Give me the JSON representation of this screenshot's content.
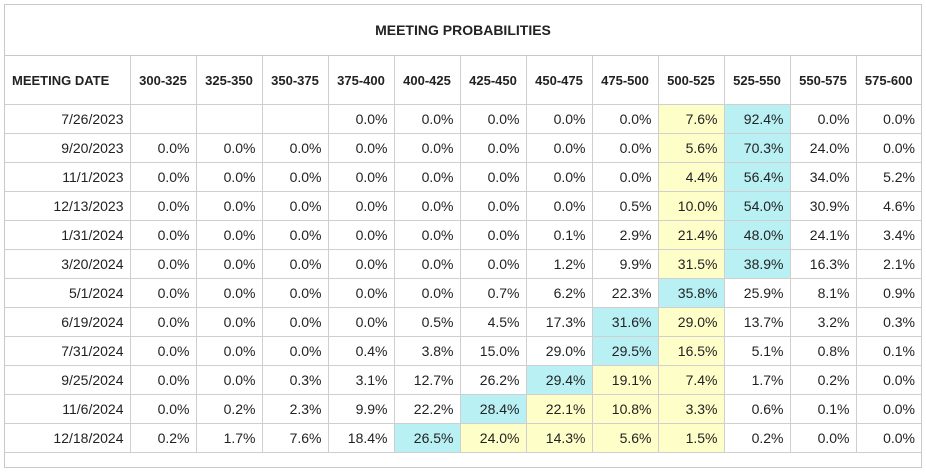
{
  "title": "MEETING PROBABILITIES",
  "columns": [
    "MEETING DATE",
    "300-325",
    "325-350",
    "350-375",
    "375-400",
    "400-425",
    "425-450",
    "450-475",
    "475-500",
    "500-525",
    "525-550",
    "550-575",
    "575-600"
  ],
  "colors": {
    "highlight_yellow": "#fefec8",
    "highlight_cyan": "#b8f0f4"
  },
  "rows": [
    {
      "date": "7/26/2023",
      "values": [
        "",
        "",
        "",
        "0.0%",
        "0.0%",
        "0.0%",
        "0.0%",
        "0.0%",
        "7.6%",
        "92.4%",
        "0.0%",
        "0.0%"
      ],
      "yellow": 8,
      "cyan": 9
    },
    {
      "date": "9/20/2023",
      "values": [
        "0.0%",
        "0.0%",
        "0.0%",
        "0.0%",
        "0.0%",
        "0.0%",
        "0.0%",
        "0.0%",
        "5.6%",
        "70.3%",
        "24.0%",
        "0.0%"
      ],
      "yellow": 8,
      "cyan": 9
    },
    {
      "date": "11/1/2023",
      "values": [
        "0.0%",
        "0.0%",
        "0.0%",
        "0.0%",
        "0.0%",
        "0.0%",
        "0.0%",
        "0.0%",
        "4.4%",
        "56.4%",
        "34.0%",
        "5.2%"
      ],
      "yellow": 8,
      "cyan": 9
    },
    {
      "date": "12/13/2023",
      "values": [
        "0.0%",
        "0.0%",
        "0.0%",
        "0.0%",
        "0.0%",
        "0.0%",
        "0.0%",
        "0.5%",
        "10.0%",
        "54.0%",
        "30.9%",
        "4.6%"
      ],
      "yellow": 8,
      "cyan": 9
    },
    {
      "date": "1/31/2024",
      "values": [
        "0.0%",
        "0.0%",
        "0.0%",
        "0.0%",
        "0.0%",
        "0.0%",
        "0.1%",
        "2.9%",
        "21.4%",
        "48.0%",
        "24.1%",
        "3.4%"
      ],
      "yellow": 8,
      "cyan": 9
    },
    {
      "date": "3/20/2024",
      "values": [
        "0.0%",
        "0.0%",
        "0.0%",
        "0.0%",
        "0.0%",
        "0.0%",
        "1.2%",
        "9.9%",
        "31.5%",
        "38.9%",
        "16.3%",
        "2.1%"
      ],
      "yellow": 8,
      "cyan": 9
    },
    {
      "date": "5/1/2024",
      "values": [
        "0.0%",
        "0.0%",
        "0.0%",
        "0.0%",
        "0.0%",
        "0.7%",
        "6.2%",
        "22.3%",
        "35.8%",
        "25.9%",
        "8.1%",
        "0.9%"
      ],
      "yellow": -1,
      "cyan": 8
    },
    {
      "date": "6/19/2024",
      "values": [
        "0.0%",
        "0.0%",
        "0.0%",
        "0.0%",
        "0.5%",
        "4.5%",
        "17.3%",
        "31.6%",
        "29.0%",
        "13.7%",
        "3.2%",
        "0.3%"
      ],
      "yellow": 8,
      "cyan": 7
    },
    {
      "date": "7/31/2024",
      "values": [
        "0.0%",
        "0.0%",
        "0.0%",
        "0.4%",
        "3.8%",
        "15.0%",
        "29.0%",
        "29.5%",
        "16.5%",
        "5.1%",
        "0.8%",
        "0.1%"
      ],
      "yellow": 8,
      "cyan": 7
    },
    {
      "date": "9/25/2024",
      "values": [
        "0.0%",
        "0.0%",
        "0.3%",
        "3.1%",
        "12.7%",
        "26.2%",
        "29.4%",
        "19.1%",
        "7.4%",
        "1.7%",
        "0.2%",
        "0.0%"
      ],
      "yellow": 7,
      "cyan": 6,
      "yellow2": 8
    },
    {
      "date": "11/6/2024",
      "values": [
        "0.0%",
        "0.2%",
        "2.3%",
        "9.9%",
        "22.2%",
        "28.4%",
        "22.1%",
        "10.8%",
        "3.3%",
        "0.6%",
        "0.1%",
        "0.0%"
      ],
      "yellow": 6,
      "cyan": 5,
      "yellow2": 7,
      "yellow3": 8
    },
    {
      "date": "12/18/2024",
      "values": [
        "0.2%",
        "1.7%",
        "7.6%",
        "18.4%",
        "26.5%",
        "24.0%",
        "14.3%",
        "5.6%",
        "1.5%",
        "0.2%",
        "0.0%",
        "0.0%"
      ],
      "yellow": 5,
      "cyan": 4,
      "yellow2": 6,
      "yellow3": 7,
      "yellow4": 8
    }
  ]
}
